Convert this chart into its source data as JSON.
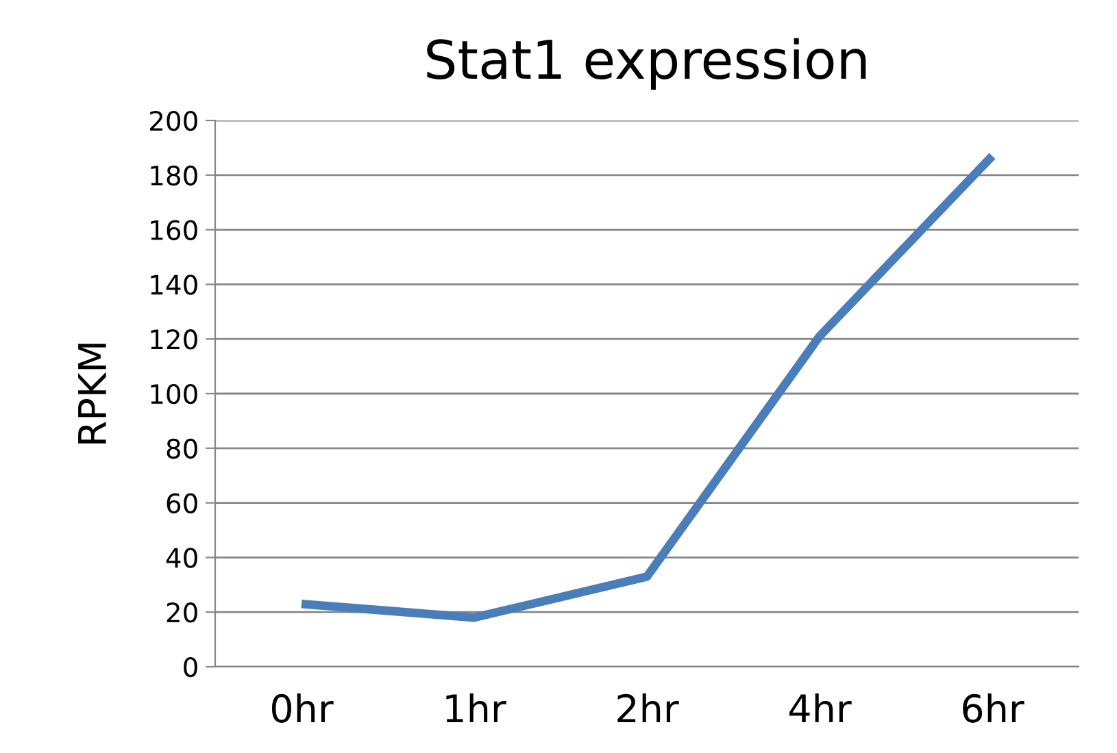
{
  "chart_data": {
    "type": "line",
    "title": "Stat1 expression",
    "ylabel": "RPKM",
    "categories": [
      "0hr",
      "1hr",
      "2hr",
      "4hr",
      "6hr"
    ],
    "series": [
      {
        "color": "#4a7ebb",
        "values": [
          23,
          18,
          33,
          121,
          187
        ]
      }
    ],
    "ylim": [
      0,
      200
    ],
    "yticks": [
      0,
      20,
      40,
      60,
      80,
      100,
      120,
      140,
      160,
      180,
      200
    ],
    "grid": "y",
    "marker": "none",
    "line_style": "solid"
  }
}
